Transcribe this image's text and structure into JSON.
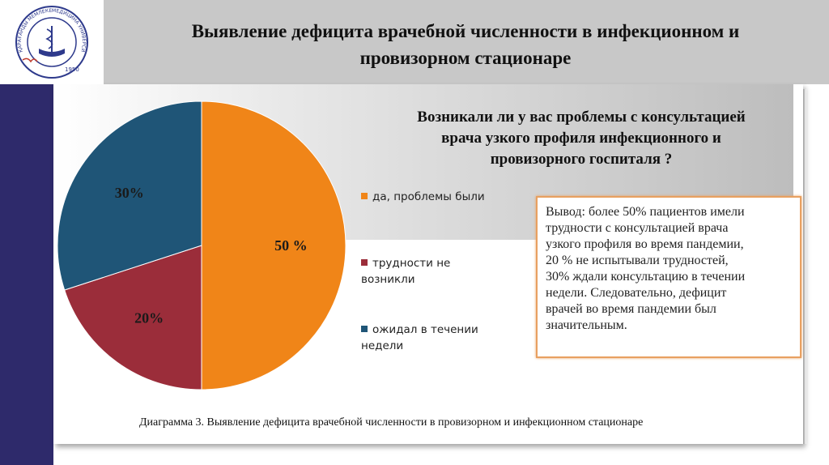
{
  "header": {
    "title_line1": "Выявление дефицита врачебной численности в инфекционном и",
    "title_line2": "провизорном стационаре"
  },
  "logo": {
    "arc_text_left": "ҚАРАҒАНДЫ МЕМЛЕКЕТТІК",
    "arc_text_right": "МЕДИЦИНА УНИВЕРСИТЕТІ",
    "year": "1950"
  },
  "chart_data": {
    "type": "pie",
    "title_line1": "Возникали ли у вас  проблемы с консультацией",
    "title_line2": "врача узкого профиля инфекционного и",
    "title_line3": "провизорного госпиталя ?",
    "slices": [
      {
        "label": "да, проблемы были",
        "value": 50,
        "data_label": "50 %",
        "color": "#f08518"
      },
      {
        "label": "трудности не возникли",
        "value": 20,
        "data_label": "20%",
        "color": "#9b2d3a"
      },
      {
        "label": "ожидал  в течении недели",
        "value": 30,
        "data_label": "30%",
        "color": "#1f5577"
      }
    ],
    "legend_position": "right",
    "legend_labels": {
      "item1": "да, проблемы были",
      "item2_line1": "трудности не",
      "item2_line2": "возникли",
      "item3_line1": "ожидал  в течении",
      "item3_line2": "недели"
    }
  },
  "note": {
    "lines": [
      "Вывод: более 50% пациентов имели",
      "трудности с консультацией врача",
      "узкого профиля во время пандемии,",
      "20 % не испытывали трудностей,",
      "30% ждали консультацию в течении",
      "недели. Следовательно, дефицит",
      "врачей  во время пандемии был",
      "значительным."
    ]
  },
  "caption": "Диаграмма 3. Выявление дефицита врачебной численности в провизорном и инфекционном стационаре"
}
